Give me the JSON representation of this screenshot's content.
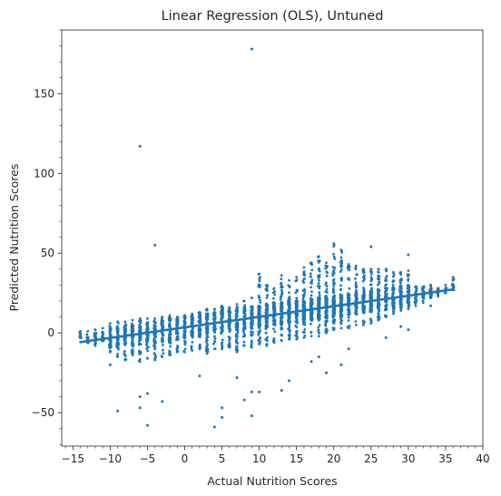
{
  "chart_data": {
    "type": "scatter",
    "title": "Linear Regression (OLS), Untuned",
    "xlabel": "Actual Nutrition Scores",
    "ylabel": "Predicted Nutrition Scores",
    "xlim": [
      -16.5,
      40
    ],
    "ylim": [
      -71,
      190
    ],
    "x_ticks": [
      -15,
      -10,
      -5,
      0,
      5,
      10,
      15,
      20,
      25,
      30,
      35,
      40
    ],
    "y_ticks": [
      -50,
      0,
      50,
      100,
      150
    ],
    "grid": false,
    "point_color": "#1f77b4",
    "regression_line": {
      "x": [
        -14,
        36
      ],
      "y": [
        -5.8,
        27.3
      ]
    },
    "bands": [
      {
        "x": -14,
        "low": -3,
        "high": 1
      },
      {
        "x": -13,
        "low": -6,
        "high": 1
      },
      {
        "x": -12,
        "low": -8,
        "high": 2
      },
      {
        "x": -11,
        "low": -5,
        "high": 3
      },
      {
        "x": -10,
        "low": -12,
        "high": 6
      },
      {
        "x": -9,
        "low": -15,
        "high": 7
      },
      {
        "x": -8,
        "low": -17,
        "high": 7
      },
      {
        "x": -7,
        "low": -14,
        "high": 8
      },
      {
        "x": -6,
        "low": -18,
        "high": 9
      },
      {
        "x": -5,
        "low": -16,
        "high": 9
      },
      {
        "x": -4,
        "low": -17,
        "high": 9
      },
      {
        "x": -3,
        "low": -15,
        "high": 10
      },
      {
        "x": -2,
        "low": -14,
        "high": 11
      },
      {
        "x": -1,
        "low": -12,
        "high": 10
      },
      {
        "x": 0,
        "low": -12,
        "high": 11
      },
      {
        "x": 1,
        "low": -11,
        "high": 12
      },
      {
        "x": 2,
        "low": -10,
        "high": 13
      },
      {
        "x": 3,
        "low": -13,
        "high": 15
      },
      {
        "x": 4,
        "low": -10,
        "high": 15
      },
      {
        "x": 5,
        "low": -10,
        "high": 17
      },
      {
        "x": 6,
        "low": -9,
        "high": 16
      },
      {
        "x": 7,
        "low": -12,
        "high": 18
      },
      {
        "x": 8,
        "low": -8,
        "high": 20
      },
      {
        "x": 9,
        "low": -9,
        "high": 22
      },
      {
        "x": 10,
        "low": -7,
        "high": 37
      },
      {
        "x": 11,
        "low": -8,
        "high": 30
      },
      {
        "x": 12,
        "low": -6,
        "high": 28
      },
      {
        "x": 13,
        "low": -5,
        "high": 36
      },
      {
        "x": 14,
        "low": -4,
        "high": 33
      },
      {
        "x": 15,
        "low": -4,
        "high": 35
      },
      {
        "x": 16,
        "low": -3,
        "high": 41
      },
      {
        "x": 17,
        "low": -2,
        "high": 44
      },
      {
        "x": 18,
        "low": -2,
        "high": 48
      },
      {
        "x": 19,
        "low": 0,
        "high": 44
      },
      {
        "x": 20,
        "low": 2,
        "high": 56
      },
      {
        "x": 21,
        "low": 3,
        "high": 52
      },
      {
        "x": 22,
        "low": 3,
        "high": 43
      },
      {
        "x": 23,
        "low": 5,
        "high": 42
      },
      {
        "x": 24,
        "low": 5,
        "high": 40
      },
      {
        "x": 25,
        "low": 6,
        "high": 40
      },
      {
        "x": 26,
        "low": 8,
        "high": 40
      },
      {
        "x": 27,
        "low": 10,
        "high": 40
      },
      {
        "x": 28,
        "low": 12,
        "high": 38
      },
      {
        "x": 29,
        "low": 14,
        "high": 38
      },
      {
        "x": 30,
        "low": 15,
        "high": 39
      },
      {
        "x": 31,
        "low": 17,
        "high": 29
      },
      {
        "x": 32,
        "low": 19,
        "high": 29
      },
      {
        "x": 33,
        "low": 22,
        "high": 30
      },
      {
        "x": 34,
        "low": 23,
        "high": 28
      },
      {
        "x": 35,
        "low": 25,
        "high": 30
      },
      {
        "x": 36,
        "low": 27,
        "high": 35
      }
    ],
    "outliers": [
      [
        9,
        178
      ],
      [
        -6,
        117
      ],
      [
        -4,
        55
      ],
      [
        25,
        54
      ],
      [
        30,
        49
      ],
      [
        -9,
        -49
      ],
      [
        -6,
        -40
      ],
      [
        -6,
        -47
      ],
      [
        -5,
        -38
      ],
      [
        -5,
        -58
      ],
      [
        -3,
        -43
      ],
      [
        4,
        -59
      ],
      [
        5,
        -47
      ],
      [
        5,
        -53
      ],
      [
        8,
        -42
      ],
      [
        9,
        -52
      ],
      [
        9,
        -37
      ],
      [
        10,
        -37
      ],
      [
        13,
        -36
      ],
      [
        14,
        -30
      ],
      [
        19,
        -25
      ],
      [
        21,
        -20
      ],
      [
        18,
        -15
      ],
      [
        17,
        -18
      ],
      [
        22,
        -10
      ],
      [
        27,
        -3
      ],
      [
        30,
        2
      ],
      [
        29,
        4
      ],
      [
        33,
        17
      ],
      [
        36,
        33
      ],
      [
        -10,
        -20
      ],
      [
        -12,
        -2
      ],
      [
        2,
        -27
      ],
      [
        7,
        -28
      ]
    ]
  }
}
